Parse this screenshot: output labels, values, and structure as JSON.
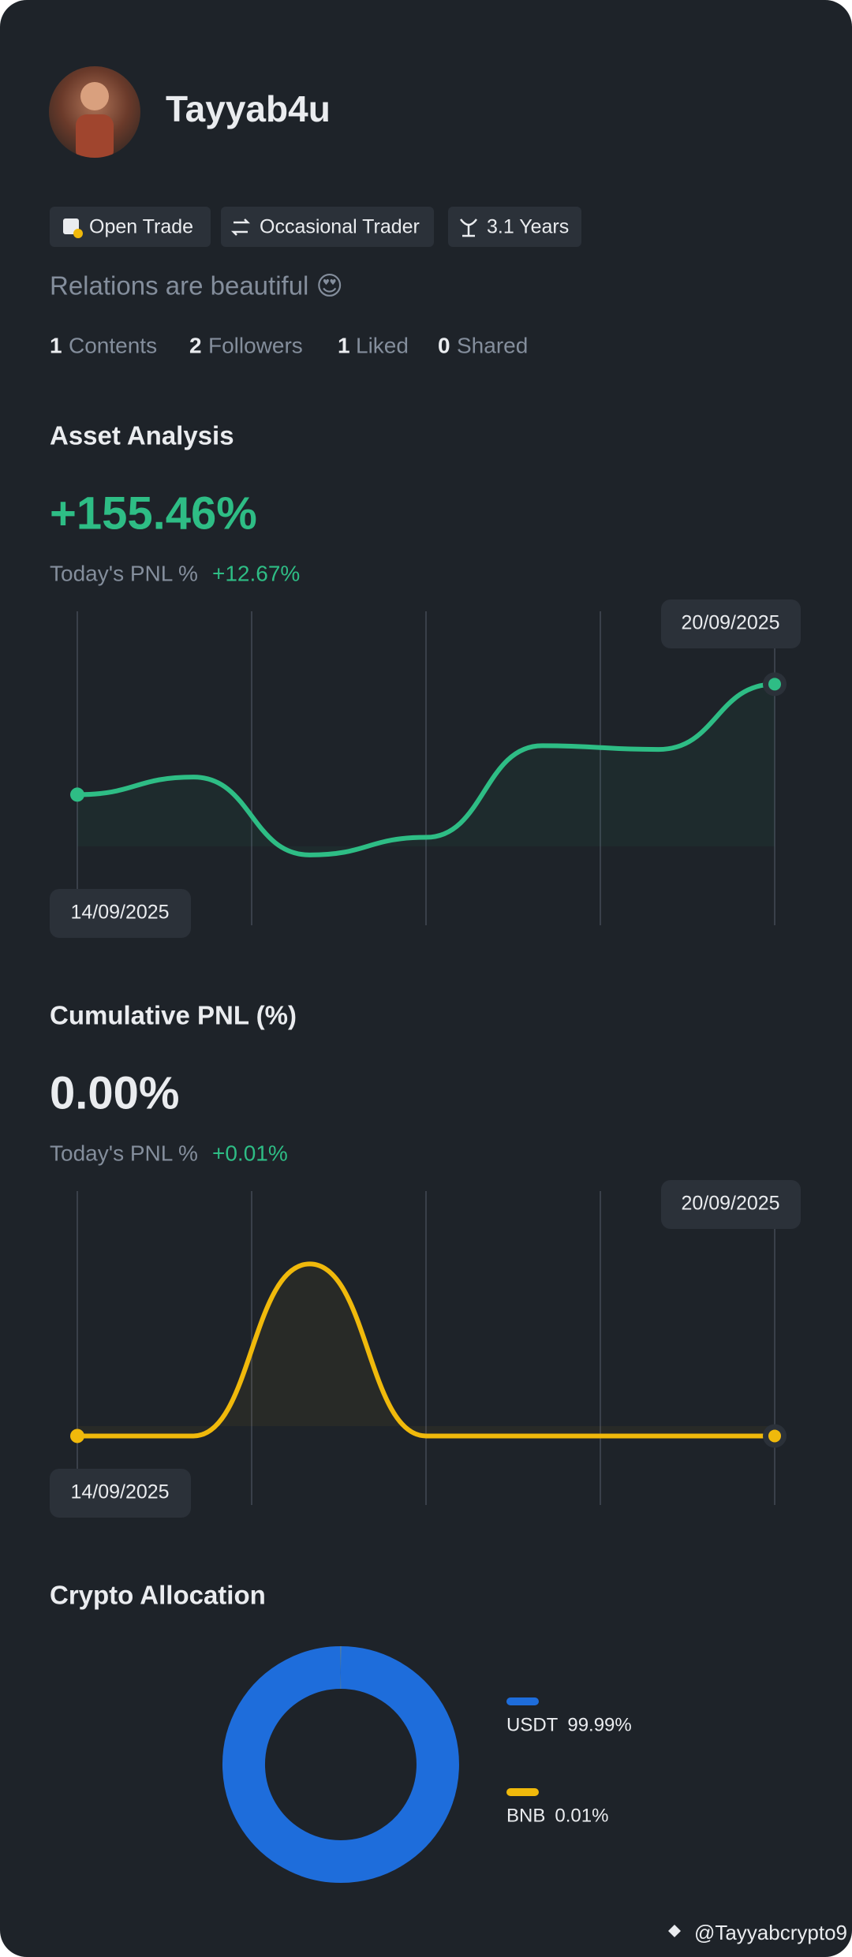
{
  "profile": {
    "name": "Tayyab4u",
    "tags": [
      "Open Trade",
      "Occasional Trader",
      "3.1 Years"
    ],
    "bio": "Relations are beautiful 😍",
    "stats": [
      {
        "count": 1,
        "label": "Contents"
      },
      {
        "count": 2,
        "label": "Followers"
      },
      {
        "count": 1,
        "label": "Liked"
      },
      {
        "count": 0,
        "label": "Shared"
      }
    ]
  },
  "chart_data": [
    {
      "type": "line",
      "title": "Asset Analysis",
      "headline": "+155.46%",
      "headline_color": "#2ebd85",
      "pnl_label": "Today's PNL %",
      "pnl_value": "+12.67%",
      "categories": [
        "14/09/2025",
        null,
        null,
        null,
        null,
        null,
        "20/09/2025"
      ],
      "series": [
        {
          "color": "#2ebd85",
          "values": [
            41.6,
            47.2,
            22.4,
            28,
            57.2,
            56,
            76.8
          ]
        }
      ],
      "ylim": [
        0,
        100
      ]
    },
    {
      "type": "line",
      "title": "Cumulative PNL (%)",
      "headline": "0.00%",
      "headline_color": "#eaecef",
      "pnl_label": "Today's PNL %",
      "pnl_value": "+0.01%",
      "categories": [
        "14/09/2025",
        null,
        null,
        null,
        null,
        null,
        "20/09/2025"
      ],
      "series": [
        {
          "color": "#f0b90b",
          "values": [
            22,
            22,
            76.8,
            22,
            22,
            22,
            22
          ]
        }
      ],
      "ylim": [
        0,
        100
      ]
    },
    {
      "type": "pie",
      "title": "Crypto Allocation",
      "labels": [
        "USDT",
        "BNB"
      ],
      "values": [
        99.99,
        0.01
      ],
      "value_labels": [
        "99.99%",
        "0.01%"
      ],
      "colors": [
        "#1e6ddb",
        "#f0b90b"
      ]
    }
  ],
  "watermark": "@Tayyabcrypto9"
}
